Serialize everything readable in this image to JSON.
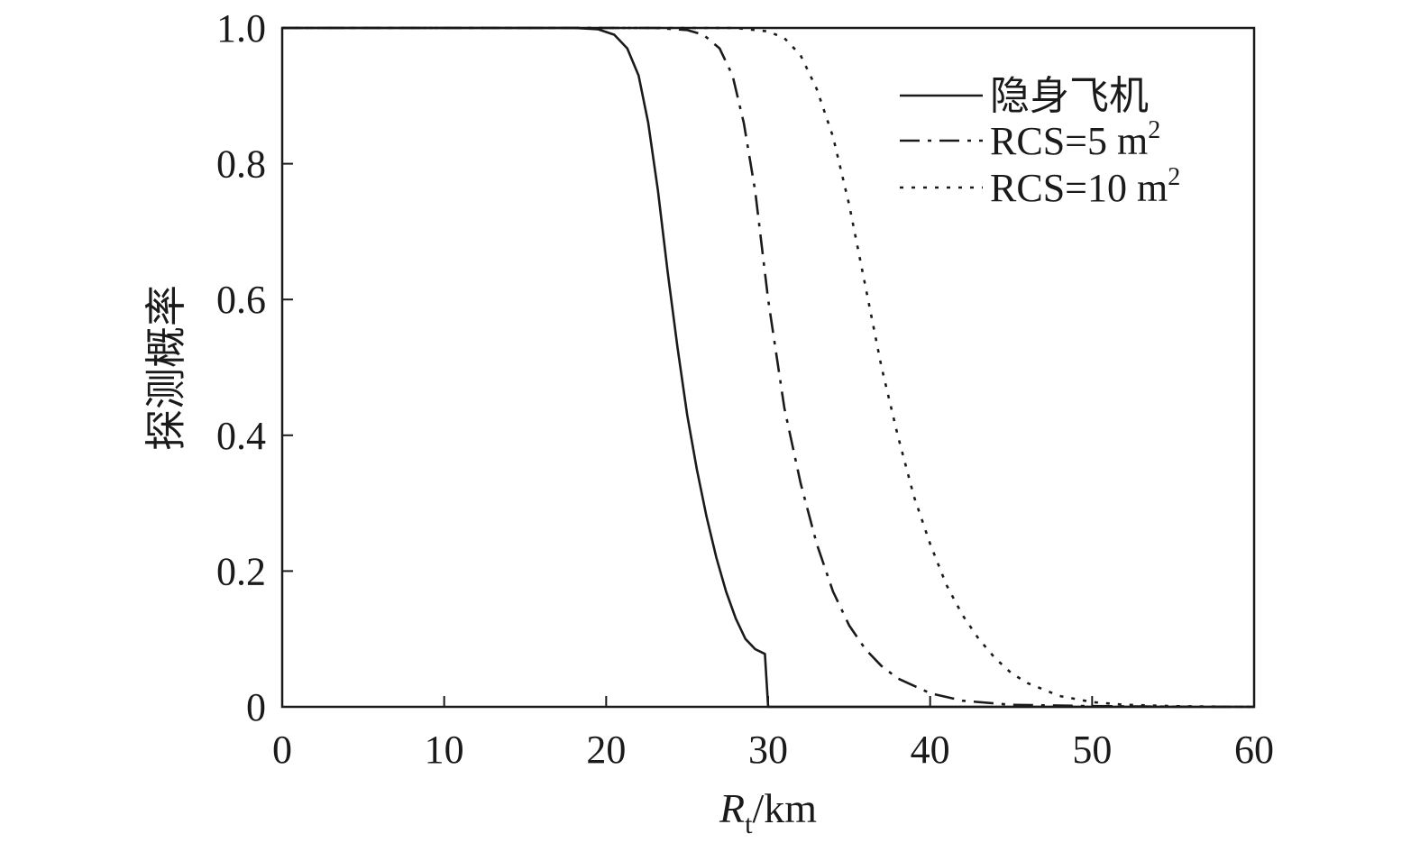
{
  "chart_data": {
    "type": "line",
    "xlabel": {
      "main": "R",
      "sub": "t",
      "unit": "/km"
    },
    "ylabel": "探测概率",
    "xlim": [
      0,
      60
    ],
    "ylim": [
      0,
      1
    ],
    "x_ticks": [
      0,
      10,
      20,
      30,
      40,
      50,
      60
    ],
    "y_ticks": [
      0,
      0.2,
      0.4,
      0.6,
      0.8,
      1.0
    ],
    "x_tick_labels": [
      "0",
      "10",
      "20",
      "30",
      "40",
      "50",
      "60"
    ],
    "y_tick_labels": [
      "0",
      "0.2",
      "0.4",
      "0.6",
      "0.8",
      "1.0"
    ],
    "grid": false,
    "legend_position": "top-right",
    "series": [
      {
        "name": "隐身飞机",
        "style": "solid",
        "color": "#1a1a1a",
        "x": [
          0,
          18,
          19.5,
          20.5,
          21.3,
          22,
          22.6,
          23.2,
          23.8,
          24.4,
          25,
          25.6,
          26.2,
          26.8,
          27.4,
          28,
          28.6,
          29.2,
          29.8,
          30,
          30.1,
          60
        ],
        "y": [
          1.0,
          1.0,
          0.998,
          0.99,
          0.97,
          0.93,
          0.86,
          0.76,
          0.64,
          0.53,
          0.43,
          0.35,
          0.28,
          0.22,
          0.17,
          0.13,
          0.1,
          0.085,
          0.078,
          0.0,
          0.0,
          0.0
        ]
      },
      {
        "name": "RCS=5 m²",
        "name_base": "RCS=5 m",
        "name_sup": "2",
        "style": "dash-dot",
        "color": "#1a1a1a",
        "x": [
          0,
          23,
          25,
          26,
          27,
          27.8,
          28.5,
          29.2,
          30,
          31,
          32,
          33,
          34,
          35,
          36,
          37,
          38,
          40,
          42,
          45,
          50,
          55,
          60
        ],
        "y": [
          1.0,
          1.0,
          0.997,
          0.99,
          0.97,
          0.93,
          0.86,
          0.76,
          0.6,
          0.44,
          0.33,
          0.24,
          0.17,
          0.12,
          0.085,
          0.06,
          0.042,
          0.02,
          0.009,
          0.003,
          0.001,
          0.0003,
          0.0
        ]
      },
      {
        "name": "RCS=10 m²",
        "name_base": "RCS=10 m",
        "name_sup": "2",
        "style": "dotted",
        "color": "#1a1a1a",
        "x": [
          0,
          28,
          30,
          31,
          32,
          33,
          34,
          35,
          36,
          37,
          38,
          39,
          40,
          41,
          42,
          43,
          44,
          45,
          46,
          48,
          50,
          52,
          55,
          58,
          60
        ],
        "y": [
          1.0,
          1.0,
          0.995,
          0.985,
          0.96,
          0.91,
          0.84,
          0.74,
          0.62,
          0.5,
          0.4,
          0.31,
          0.24,
          0.18,
          0.135,
          0.1,
          0.072,
          0.05,
          0.035,
          0.016,
          0.007,
          0.003,
          0.001,
          0.0003,
          0.0
        ]
      }
    ]
  }
}
